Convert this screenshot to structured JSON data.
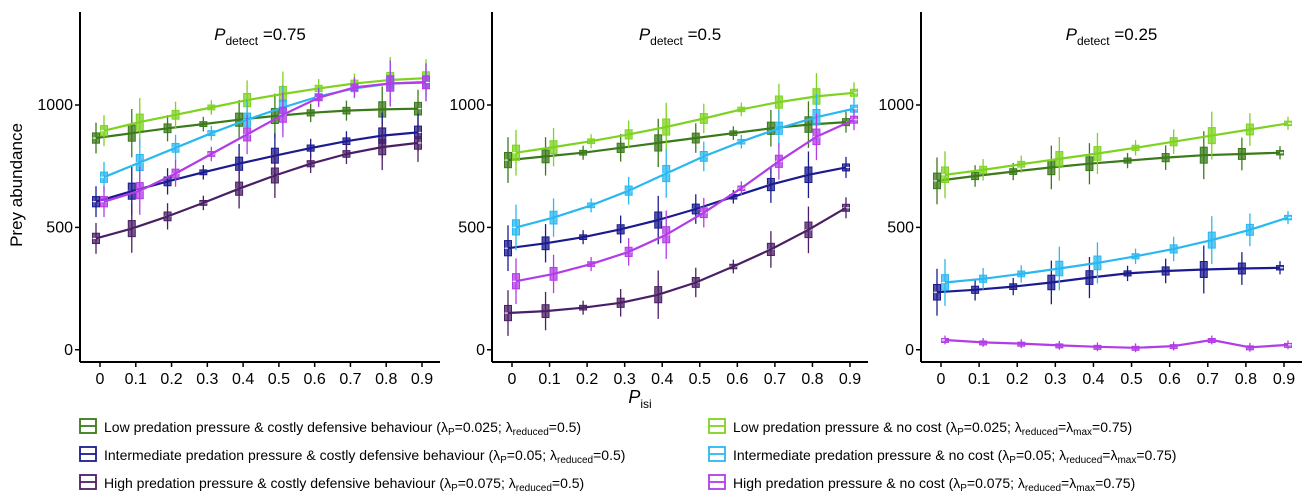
{
  "y_axis_label": "Prey abundance",
  "x_axis_label": {
    "main": "P",
    "sub": "isi"
  },
  "chart_data": [
    {
      "type": "line",
      "title": {
        "prefix": "P",
        "sub": "detect",
        "suffix": " =0.75"
      },
      "x": [
        0,
        0.1,
        0.2,
        0.3,
        0.4,
        0.5,
        0.6,
        0.7,
        0.8,
        0.9
      ],
      "x_ticks": [
        "0",
        "0.1",
        "0.2",
        "0.3",
        "0.4",
        "0.5",
        "0.6",
        "0.7",
        "0.8",
        "0.9"
      ],
      "y_ticks": [
        0,
        500,
        1000
      ],
      "ylim": [
        -50,
        1380
      ],
      "series": [
        {
          "key": "low_costly",
          "values": [
            865,
            885,
            905,
            922,
            940,
            955,
            968,
            977,
            982,
            985
          ]
        },
        {
          "key": "low_nocost",
          "values": [
            895,
            930,
            960,
            990,
            1020,
            1045,
            1068,
            1088,
            1102,
            1110
          ]
        },
        {
          "key": "int_costly",
          "values": [
            605,
            648,
            688,
            725,
            760,
            793,
            824,
            852,
            875,
            888
          ]
        },
        {
          "key": "int_nocost",
          "values": [
            705,
            765,
            825,
            885,
            940,
            990,
            1035,
            1068,
            1088,
            1095
          ]
        },
        {
          "key": "high_costly",
          "values": [
            455,
            495,
            545,
            600,
            658,
            712,
            760,
            800,
            828,
            845
          ]
        },
        {
          "key": "high_nocost",
          "values": [
            605,
            650,
            720,
            800,
            880,
            960,
            1030,
            1072,
            1088,
            1092
          ]
        }
      ]
    },
    {
      "type": "line",
      "title": {
        "prefix": "P",
        "sub": "detect",
        "suffix": " =0.5"
      },
      "x": [
        0,
        0.1,
        0.2,
        0.3,
        0.4,
        0.5,
        0.6,
        0.7,
        0.8,
        0.9
      ],
      "x_ticks": [
        "0",
        "0.1",
        "0.2",
        "0.3",
        "0.4",
        "0.5",
        "0.6",
        "0.7",
        "0.8",
        "0.9"
      ],
      "y_ticks": [
        0,
        500,
        1000
      ],
      "ylim": [
        -50,
        1380
      ],
      "series": [
        {
          "key": "low_costly",
          "values": [
            775,
            790,
            805,
            825,
            845,
            865,
            885,
            905,
            920,
            930
          ]
        },
        {
          "key": "low_nocost",
          "values": [
            805,
            828,
            852,
            880,
            910,
            945,
            982,
            1012,
            1035,
            1050
          ]
        },
        {
          "key": "int_costly",
          "values": [
            415,
            435,
            460,
            492,
            530,
            575,
            625,
            675,
            715,
            745
          ]
        },
        {
          "key": "int_nocost",
          "values": [
            500,
            540,
            590,
            650,
            720,
            790,
            850,
            905,
            950,
            985
          ]
        },
        {
          "key": "high_costly",
          "values": [
            150,
            158,
            172,
            192,
            225,
            275,
            340,
            410,
            490,
            580
          ]
        },
        {
          "key": "high_nocost",
          "values": [
            280,
            310,
            350,
            400,
            470,
            560,
            660,
            770,
            870,
            940
          ]
        }
      ]
    },
    {
      "type": "line",
      "title": {
        "prefix": "P",
        "sub": "detect",
        "suffix": " =0.25"
      },
      "x": [
        0,
        0.1,
        0.2,
        0.3,
        0.4,
        0.5,
        0.6,
        0.7,
        0.8,
        0.9
      ],
      "x_ticks": [
        "0",
        "0.1",
        "0.2",
        "0.3",
        "0.4",
        "0.5",
        "0.6",
        "0.7",
        "0.8",
        "0.9"
      ],
      "y_ticks": [
        0,
        500,
        1000
      ],
      "ylim": [
        -50,
        1380
      ],
      "series": [
        {
          "key": "low_costly",
          "values": [
            690,
            710,
            728,
            745,
            760,
            773,
            785,
            795,
            800,
            805
          ]
        },
        {
          "key": "low_nocost",
          "values": [
            715,
            735,
            758,
            780,
            802,
            825,
            850,
            875,
            900,
            925
          ]
        },
        {
          "key": "int_costly",
          "values": [
            235,
            245,
            258,
            275,
            295,
            312,
            322,
            328,
            332,
            335
          ]
        },
        {
          "key": "int_nocost",
          "values": [
            275,
            290,
            310,
            332,
            355,
            382,
            412,
            448,
            490,
            540
          ]
        },
        {
          "key": "high_nocost",
          "values": [
            40,
            30,
            25,
            18,
            12,
            8,
            15,
            40,
            10,
            20
          ]
        }
      ]
    }
  ],
  "legend": [
    {
      "key": "low_costly",
      "color": "#3b7a1a",
      "text_before": "Low predation pressure & costly defensive behaviour (λ",
      "p_sub": "P",
      "text_mid": "=0.025; λ",
      "r_sub": "reduced",
      "text_after": "=0.5)"
    },
    {
      "key": "low_nocost",
      "color": "#7ed321",
      "text_before": "Low predation pressure & no cost (λ",
      "p_sub": "P",
      "text_mid": "=0.025; λ",
      "r_sub": "reduced",
      "text_after": "=λ",
      "max_sub": "max",
      "text_end": "=0.75)"
    },
    {
      "key": "int_costly",
      "color": "#1b1b8f",
      "text_before": "Intermediate predation pressure & costly defensive behaviour (λ",
      "p_sub": "P",
      "text_mid": "=0.05; λ",
      "r_sub": "reduced",
      "text_after": "=0.5)"
    },
    {
      "key": "int_nocost",
      "color": "#2ab8f0",
      "text_before": "Intermediate predation pressure & no cost (λ",
      "p_sub": "P",
      "text_mid": "=0.05; λ",
      "r_sub": "reduced",
      "text_after": "=λ",
      "max_sub": "max",
      "text_end": "=0.75)"
    },
    {
      "key": "high_costly",
      "color": "#4b1f66",
      "text_before": "High predation pressure & costly defensive behaviour (λ",
      "p_sub": "P",
      "text_mid": "=0.075; λ",
      "r_sub": "reduced",
      "text_after": "=0.5)"
    },
    {
      "key": "high_nocost",
      "color": "#b23ce6",
      "text_before": "High predation pressure & no cost (λ",
      "p_sub": "P",
      "text_mid": "=0.075; λ",
      "r_sub": "reduced",
      "text_after": "=λ",
      "max_sub": "max",
      "text_end": "=0.75)"
    }
  ]
}
